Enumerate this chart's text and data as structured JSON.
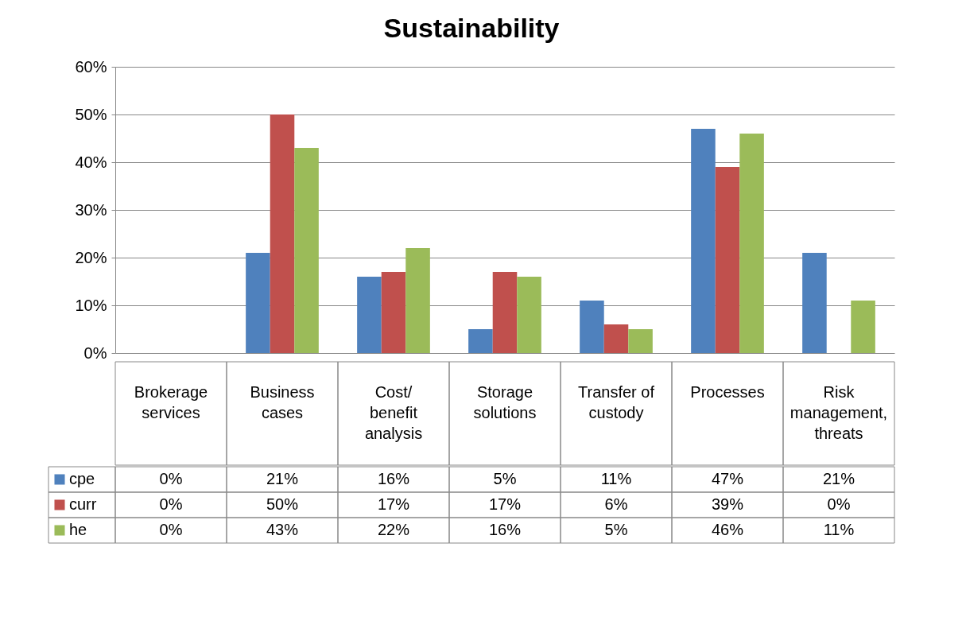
{
  "chart_data": {
    "type": "bar",
    "title": "Sustainability",
    "categories": [
      "Brokerage services",
      "Business cases",
      "Cost/ benefit analysis",
      "Storage solutions",
      "Transfer of custody",
      "Processes",
      "Risk management, threats"
    ],
    "series": [
      {
        "name": "cpe",
        "color": "#4f81bd",
        "values": [
          0,
          21,
          16,
          5,
          11,
          47,
          21
        ],
        "value_labels": [
          "0%",
          "21%",
          "16%",
          "5%",
          "11%",
          "47%",
          "21%"
        ]
      },
      {
        "name": "curr",
        "color": "#c0504d",
        "values": [
          0,
          50,
          17,
          17,
          6,
          39,
          0
        ],
        "value_labels": [
          "0%",
          "50%",
          "17%",
          "17%",
          "6%",
          "39%",
          "0%"
        ]
      },
      {
        "name": "he",
        "color": "#9bbb59",
        "values": [
          0,
          43,
          22,
          16,
          5,
          46,
          11
        ],
        "value_labels": [
          "0%",
          "43%",
          "22%",
          "16%",
          "5%",
          "46%",
          "11%"
        ]
      }
    ],
    "ylim": [
      0,
      60
    ],
    "yticks": [
      {
        "value": 0,
        "label": "0%"
      },
      {
        "value": 10,
        "label": "10%"
      },
      {
        "value": 20,
        "label": "20%"
      },
      {
        "value": 30,
        "label": "30%"
      },
      {
        "value": 40,
        "label": "40%"
      },
      {
        "value": 50,
        "label": "50%"
      },
      {
        "value": 60,
        "label": "60%"
      }
    ],
    "grid": "y",
    "legend": "left"
  }
}
